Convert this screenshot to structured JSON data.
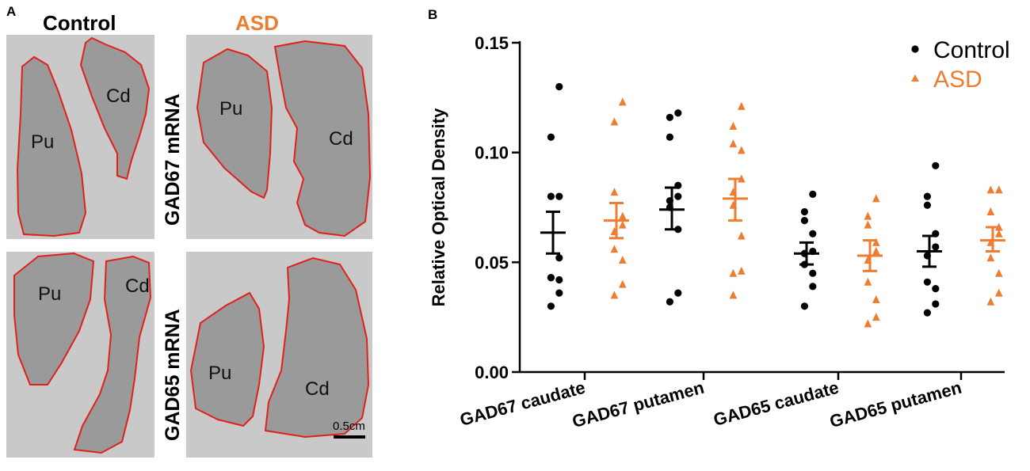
{
  "panel_a": {
    "letter": "A",
    "col_control": "Control",
    "col_asd": "ASD",
    "row_gad67": "GAD67 mRNA",
    "row_gad65": "GAD65 mRNA",
    "label_pu": "Pu",
    "label_cd": "Cd",
    "scale_label": "0.5cm",
    "colors": {
      "control": "#000000",
      "asd": "#ED7D31",
      "outline": "#E0201B"
    }
  },
  "chart_data": {
    "panel_letter": "B",
    "type": "scatter",
    "ylabel": "Relative Optical Density",
    "xlabel": "",
    "ylim": [
      0.0,
      0.15
    ],
    "yticks": [
      0.0,
      0.05,
      0.1,
      0.15
    ],
    "ytick_labels": [
      "0.00",
      "0.05",
      "0.10",
      "0.15"
    ],
    "categories": [
      "GAD67 caudate",
      "GAD67 putamen",
      "GAD65 caudate",
      "GAD65 putamen"
    ],
    "legend_position": "top-right",
    "series": [
      {
        "name": "Control",
        "color": "#000000",
        "marker": "circle",
        "points": [
          [
            0.13,
            0.107,
            0.08,
            0.08,
            0.052,
            0.043,
            0.043,
            0.042,
            0.036,
            0.03
          ],
          [
            0.118,
            0.116,
            0.107,
            0.085,
            0.08,
            0.078,
            0.075,
            0.065,
            0.036,
            0.032
          ],
          [
            0.081,
            0.073,
            0.069,
            0.063,
            0.055,
            0.054,
            0.049,
            0.045,
            0.039,
            0.03
          ],
          [
            0.094,
            0.08,
            0.076,
            0.063,
            0.057,
            0.053,
            0.041,
            0.038,
            0.031,
            0.027
          ]
        ],
        "mean": [
          0.0635,
          0.074,
          0.054,
          0.055
        ],
        "sem_low": [
          0.054,
          0.065,
          0.049,
          0.048
        ],
        "sem_high": [
          0.073,
          0.084,
          0.059,
          0.062
        ]
      },
      {
        "name": "ASD",
        "color": "#ED7D31",
        "marker": "triangle",
        "points": [
          [
            0.123,
            0.114,
            0.082,
            0.071,
            0.067,
            0.064,
            0.056,
            0.051,
            0.04,
            0.035
          ],
          [
            0.121,
            0.112,
            0.104,
            0.101,
            0.088,
            0.082,
            0.076,
            0.062,
            0.046,
            0.045,
            0.035
          ],
          [
            0.079,
            0.071,
            0.067,
            0.059,
            0.055,
            0.051,
            0.041,
            0.033,
            0.025,
            0.022
          ],
          [
            0.083,
            0.083,
            0.073,
            0.066,
            0.063,
            0.059,
            0.052,
            0.045,
            0.036,
            0.032
          ]
        ],
        "mean": [
          0.069,
          0.079,
          0.053,
          0.06
        ],
        "sem_low": [
          0.061,
          0.069,
          0.046,
          0.055
        ],
        "sem_high": [
          0.077,
          0.088,
          0.06,
          0.066
        ]
      }
    ]
  }
}
